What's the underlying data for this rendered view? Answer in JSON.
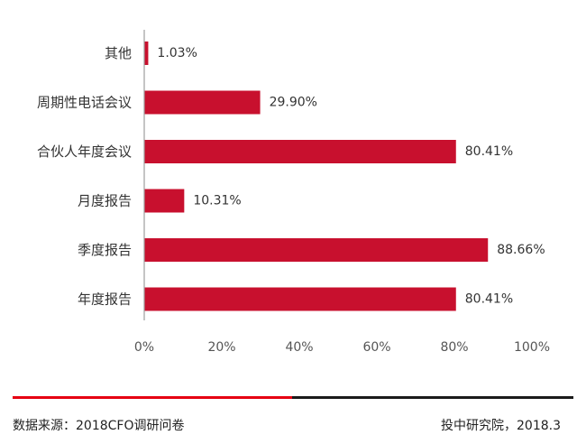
{
  "chart_data": {
    "type": "bar",
    "orientation": "horizontal",
    "categories": [
      "其他",
      "周期性电话会议",
      "合伙人年度会议",
      "月度报告",
      "季度报告",
      "年度报告"
    ],
    "values": [
      1.03,
      29.9,
      80.41,
      10.31,
      88.66,
      80.41
    ],
    "value_labels": [
      "1.03%",
      "29.90%",
      "80.41%",
      "10.31%",
      "88.66%",
      "80.41%"
    ],
    "xlim": [
      0,
      100
    ],
    "xticks": [
      0,
      20,
      40,
      60,
      80,
      100
    ],
    "xtick_labels": [
      "0%",
      "20%",
      "40%",
      "60%",
      "80%",
      "100%"
    ],
    "grid": false,
    "bar_color": "#c8102e",
    "axis_color": "#9e9e9e"
  },
  "footer": {
    "source": "数据来源：2018CFO调研问卷",
    "publisher": "投中研究院，2018.3"
  },
  "colors": {
    "accent_red": "#e60012",
    "line_black": "#1a1a1a"
  }
}
